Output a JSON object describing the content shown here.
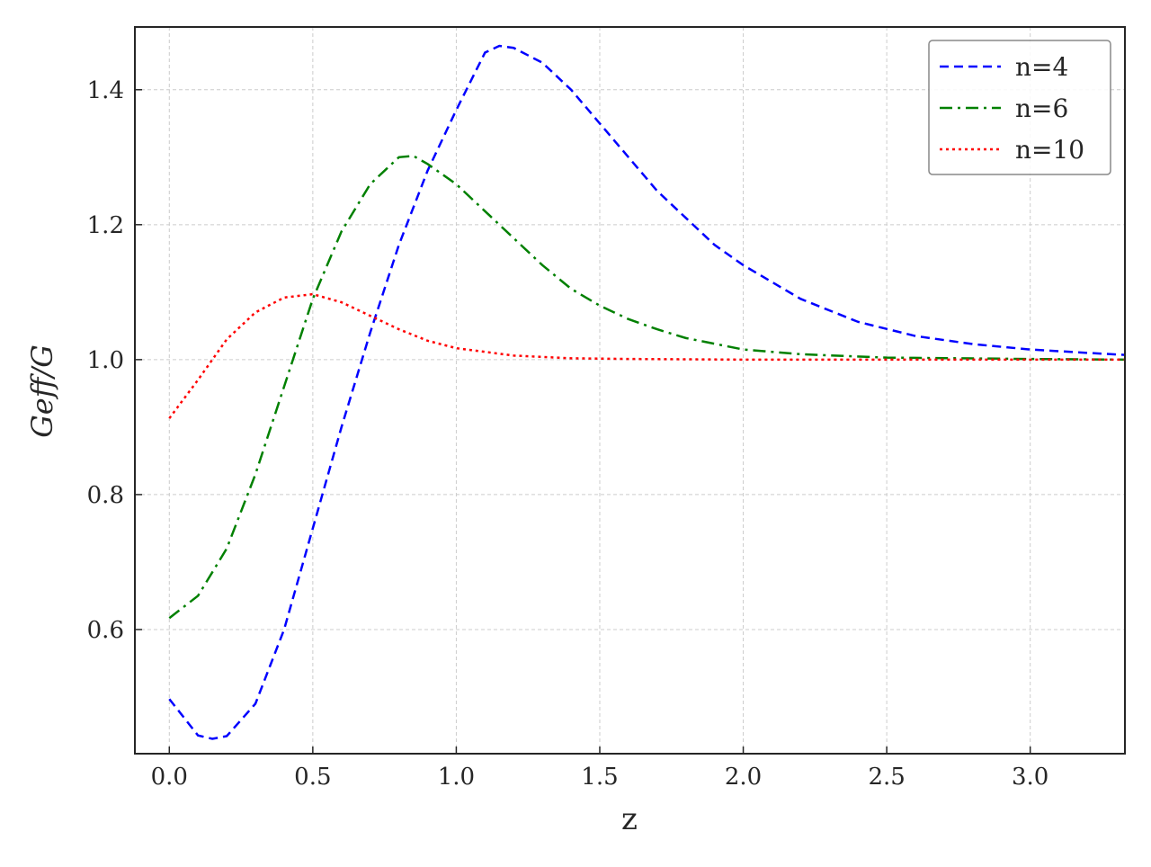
{
  "chart_data": {
    "type": "line",
    "xlabel": "z",
    "ylabel": "Geff/G",
    "xlim": [
      -0.12,
      3.33
    ],
    "ylim": [
      0.416,
      1.493
    ],
    "xticks": [
      {
        "value": 0,
        "label": "0.0"
      },
      0.5,
      {
        "value": 1,
        "label": "1.0"
      },
      1.5,
      {
        "value": 2,
        "label": "2.0"
      },
      2.5,
      {
        "value": 3,
        "label": "3.0"
      }
    ],
    "yticks": [
      0.6,
      0.8,
      {
        "value": 1,
        "label": "1.0"
      },
      1.2,
      1.4
    ],
    "grid": true,
    "legend": "upper right",
    "series": [
      {
        "name": "n=4",
        "color": "#0000ff",
        "linestyle": "dashed",
        "x": [
          0,
          0.1,
          0.15,
          0.2,
          0.3,
          0.4,
          0.5,
          0.6,
          0.7,
          0.8,
          0.9,
          1.0,
          1.1,
          1.15,
          1.2,
          1.3,
          1.4,
          1.5,
          1.6,
          1.7,
          1.8,
          1.9,
          2.0,
          2.2,
          2.4,
          2.6,
          2.8,
          3.0,
          3.2,
          3.33
        ],
        "values": [
          0.497,
          0.443,
          0.438,
          0.442,
          0.49,
          0.6,
          0.75,
          0.9,
          1.04,
          1.17,
          1.28,
          1.37,
          1.455,
          1.465,
          1.462,
          1.44,
          1.4,
          1.35,
          1.3,
          1.25,
          1.21,
          1.17,
          1.14,
          1.09,
          1.056,
          1.035,
          1.023,
          1.015,
          1.01,
          1.007
        ]
      },
      {
        "name": "n=6",
        "color": "#008000",
        "linestyle": "dashdot",
        "x": [
          0,
          0.1,
          0.2,
          0.3,
          0.4,
          0.5,
          0.6,
          0.7,
          0.8,
          0.85,
          0.9,
          1.0,
          1.1,
          1.2,
          1.3,
          1.4,
          1.5,
          1.6,
          1.7,
          1.8,
          2.0,
          2.2,
          2.5,
          3.0,
          3.33
        ],
        "values": [
          0.617,
          0.65,
          0.72,
          0.83,
          0.96,
          1.09,
          1.19,
          1.26,
          1.3,
          1.302,
          1.29,
          1.26,
          1.22,
          1.18,
          1.14,
          1.105,
          1.08,
          1.06,
          1.045,
          1.032,
          1.015,
          1.008,
          1.003,
          1.001,
          1.0
        ]
      },
      {
        "name": "n=10",
        "color": "#ff0000",
        "linestyle": "dotted",
        "x": [
          0,
          0.1,
          0.2,
          0.3,
          0.4,
          0.5,
          0.6,
          0.7,
          0.8,
          0.9,
          1.0,
          1.2,
          1.4,
          1.6,
          2.0,
          3.33
        ],
        "values": [
          0.913,
          0.97,
          1.03,
          1.07,
          1.092,
          1.097,
          1.085,
          1.065,
          1.045,
          1.028,
          1.017,
          1.006,
          1.002,
          1.001,
          1.0,
          1.0
        ]
      }
    ]
  }
}
